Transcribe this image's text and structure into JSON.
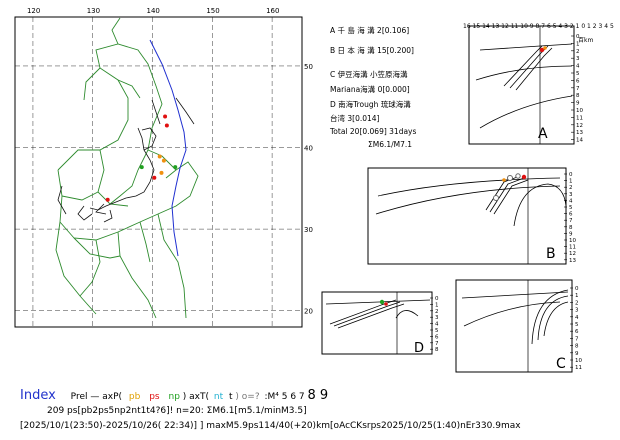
{
  "colors": {
    "frame": "#000000",
    "coast": "#111111",
    "plate": "#2e8b2e",
    "trench": "#2030d0",
    "event_red": "#e01010",
    "event_orange": "#f09010",
    "event_green": "#20a020",
    "grid": "#000000"
  },
  "map": {
    "lon_ticks": [
      "120",
      "130",
      "140",
      "150",
      "160"
    ],
    "lat_ticks": [
      "50",
      "40",
      "30",
      "20"
    ]
  },
  "legend": {
    "lines": [
      "A  千 島 海 溝 2[0.106]",
      "B  日 本 海 溝 15[0.200]",
      "C  伊豆海溝 小笠原海溝",
      "   Mariana海溝 0[0.000]",
      "D  南海Trough 琉球海溝",
      "   台湾 3[0.014]",
      "Total 20[0.069] 31days",
      "ΣM6.1/M7.1"
    ]
  },
  "panels": {
    "A": {
      "label": "A",
      "top_scale": "16 15 14 13 12 11 10 9 8 7 6 5 4 3 2 1 0  1  2  3  4  5",
      "unit": "百km",
      "depth": [
        "0",
        "1",
        "2",
        "3",
        "4",
        "5",
        "6",
        "7",
        "8",
        "9",
        "10",
        "11",
        "12",
        "13",
        "14"
      ]
    },
    "B": {
      "label": "B",
      "depth": [
        "0",
        "1",
        "2",
        "3",
        "4",
        "5",
        "6",
        "7",
        "8",
        "9",
        "10",
        "11",
        "12",
        "13"
      ]
    },
    "C": {
      "label": "C",
      "depth": [
        "0",
        "1",
        "2",
        "3",
        "4",
        "5",
        "6",
        "7",
        "8",
        "9",
        "10",
        "11"
      ]
    },
    "D": {
      "label": "D",
      "depth": [
        "0",
        "1",
        "2",
        "3",
        "4",
        "5",
        "6",
        "7",
        "8"
      ]
    }
  },
  "footer": {
    "index": "Index",
    "prel": "Prel",
    "dash": "—",
    "axp": "axP(",
    "pb": "pb",
    "ps": "ps",
    "np": "np",
    "axt": ") axT(",
    "nt": "nt",
    "t": "t",
    "o": ") o=?",
    "mags": ":M⁴ 5 6 7",
    "m89": "8 9",
    "line2": "209 ps[pb2ps5np2nt1t4?6]! n=20: ΣM6.1[m5.1/minM3.5]",
    "line3": "[2025/10/1(23:50)-2025/10/26( 22:34)] ] maxM5.9ps114/40(+20)km[oAcCKsrps2025/10/25(1:40)nEr330.9max"
  },
  "chart_data": [
    {
      "type": "scatter",
      "title": "",
      "xlabel": "",
      "ylabel": "",
      "x_ticks": [
        120,
        130,
        140,
        150,
        160
      ],
      "y_ticks": [
        50,
        40,
        30,
        20
      ],
      "xlim": [
        117,
        165
      ],
      "ylim": [
        18,
        56
      ],
      "grid": true,
      "series": [
        {
          "x": [
            142.1,
            142.4,
            141.9,
            143.8,
            138.2,
            140.3,
            141.5,
            132.5,
            141.2
          ],
          "y": [
            43.8,
            42.7,
            38.4,
            37.6,
            37.6,
            36.3,
            36.9,
            33.6,
            38.9
          ]
        }
      ]
    },
    {
      "type": "scatter",
      "panel": "A",
      "x": [
        2.1,
        2.3
      ],
      "y": [
        0.3,
        0.5
      ]
    },
    {
      "type": "scatter",
      "panel": "B",
      "x": [
        -6.2,
        -5.8,
        -5.1,
        -4.4,
        -3.2
      ],
      "y": [
        0.5,
        0.3,
        0.2,
        0.4,
        0.8
      ]
    },
    {
      "type": "scatter",
      "panel": "D",
      "x": [
        -1.5,
        -1.1
      ],
      "y": [
        0.4,
        0.6
      ]
    }
  ]
}
